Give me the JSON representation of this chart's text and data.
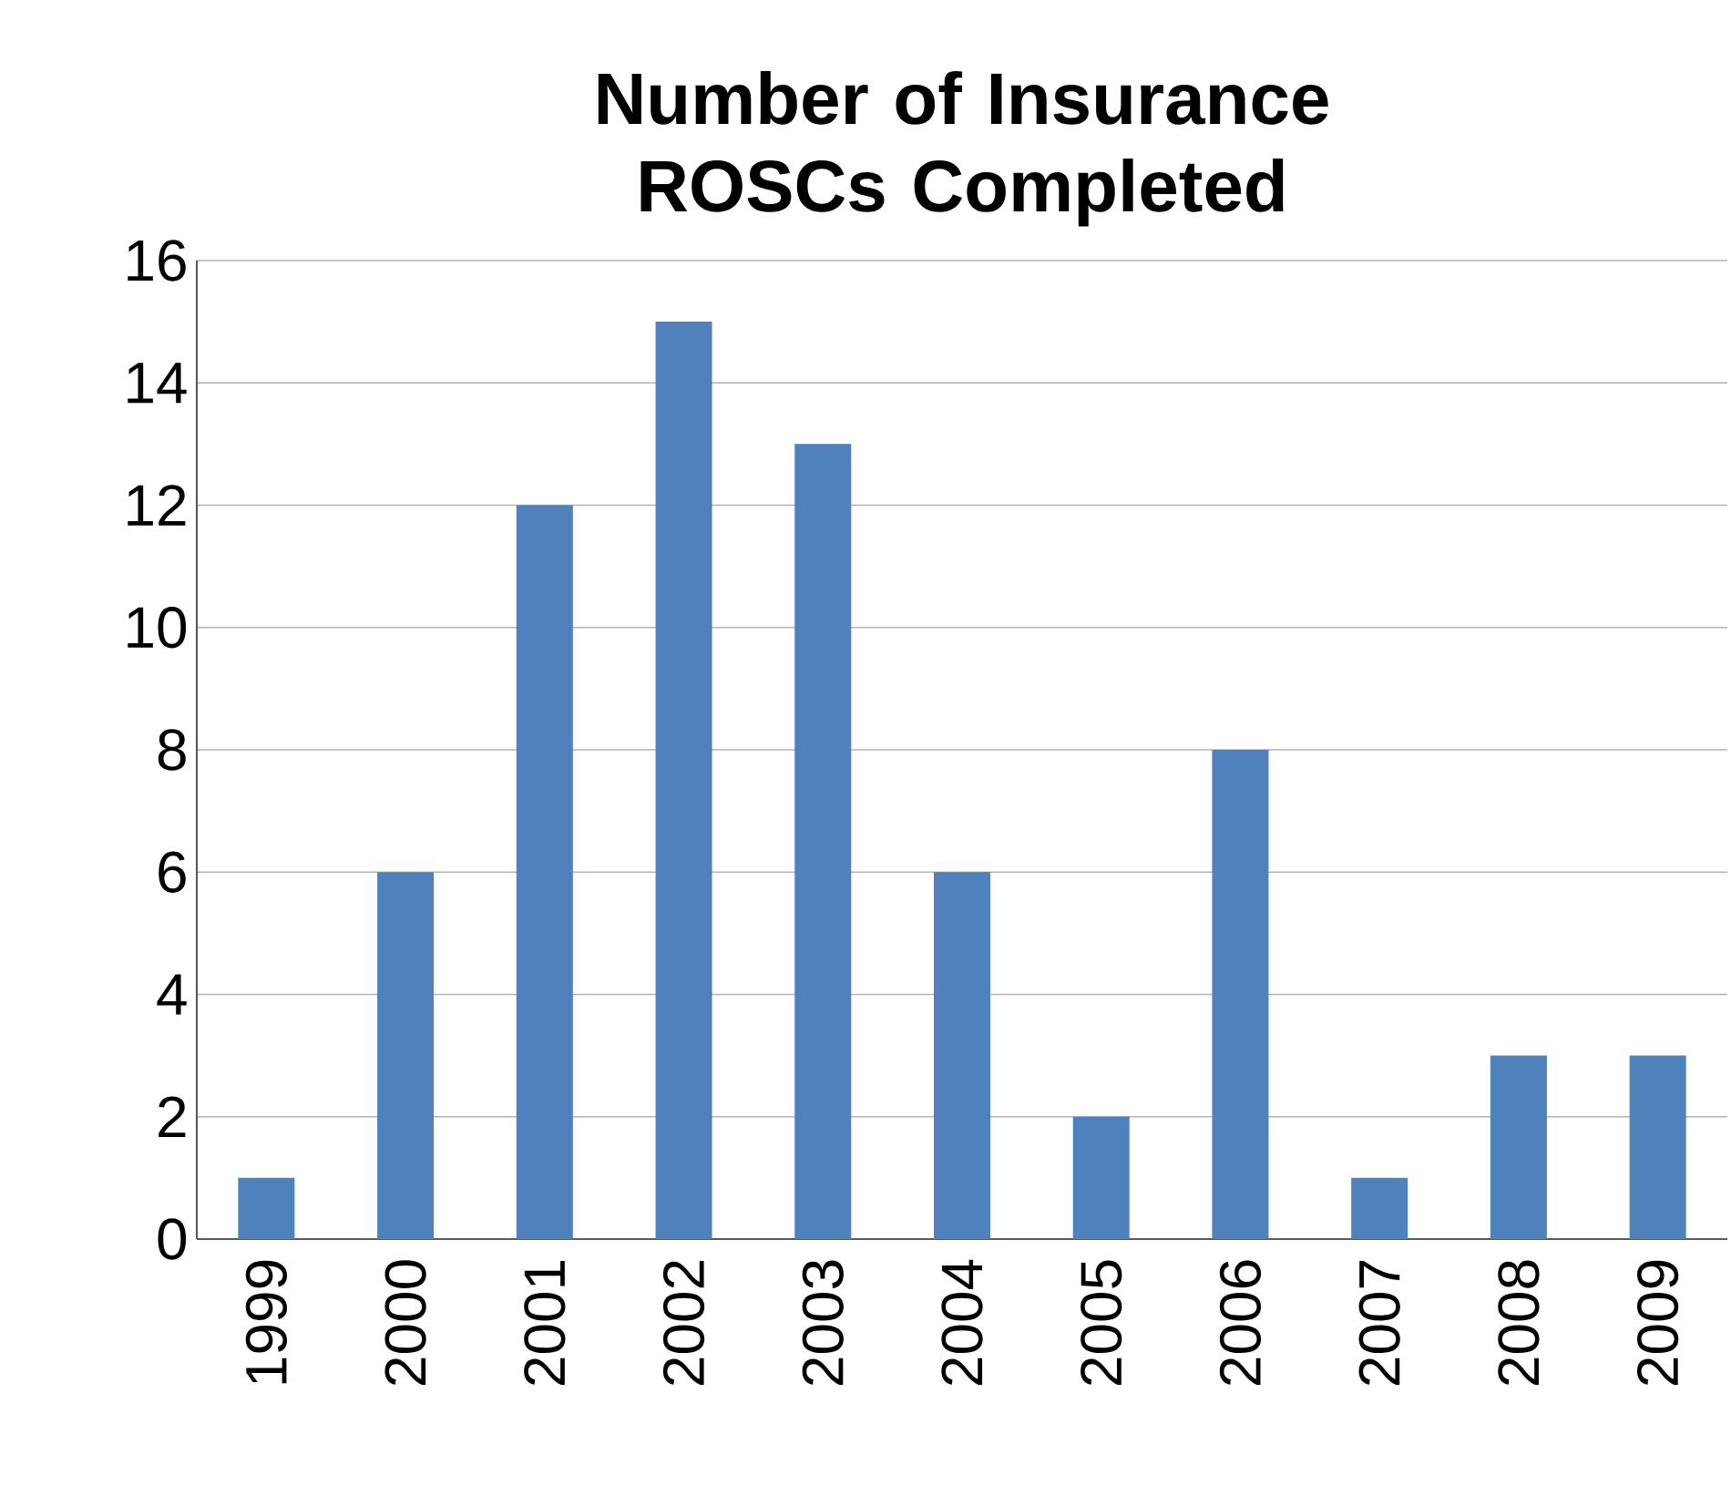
{
  "chart_data": {
    "type": "bar",
    "title": "Number of Insurance ROSCs Completed",
    "categories": [
      "1999",
      "2000",
      "2001",
      "2002",
      "2003",
      "2004",
      "2005",
      "2006",
      "2007",
      "2008",
      "2009"
    ],
    "values": [
      1,
      6,
      12,
      15,
      13,
      6,
      2,
      8,
      1,
      3,
      3
    ],
    "color": "#4f81bd",
    "ylim": [
      0,
      16
    ],
    "yticks": [
      0,
      2,
      4,
      6,
      8,
      10,
      12,
      14,
      16
    ],
    "grid": "y"
  }
}
